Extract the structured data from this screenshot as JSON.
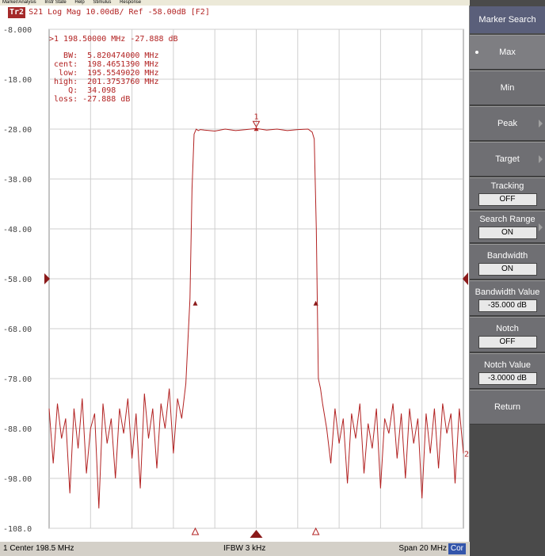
{
  "menubar": {
    "items": [
      "Marker/Analysis",
      "Instr State",
      "Help",
      "Stimulus",
      "Response"
    ]
  },
  "trace": {
    "badge": "Tr2",
    "header": "S21 Log Mag 10.00dB/ Ref -58.00dB [F2]",
    "color": "#b22222"
  },
  "marker_readout": {
    "line1": ">1  198.50000 MHz -27.888 dB",
    "bw": "   BW:  5.820474000 MHz",
    "cent": " cent:  198.4651390 MHz",
    "low": "  low:  195.5549020 MHz",
    "high": " high:  201.3753760 MHz",
    "q": "    Q:  34.098",
    "loss": " loss: -27.888 dB",
    "marker_label": "1"
  },
  "status": {
    "center": "1  Center 198.5 MHz",
    "ifbw": "IFBW 3 kHz",
    "span": "Span 20 MHz",
    "cor": "Cor"
  },
  "softkeys": {
    "title": "Marker Search",
    "max": "Max",
    "min": "Min",
    "peak": "Peak",
    "target": "Target",
    "tracking_label": "Tracking",
    "tracking_value": "OFF",
    "search_range_label": "Search Range",
    "search_range_value": "ON",
    "bandwidth_label": "Bandwidth",
    "bandwidth_value": "ON",
    "bandwidth_value_label": "Bandwidth Value",
    "bandwidth_value_value": "-35.000 dB",
    "notch_label": "Notch",
    "notch_value": "OFF",
    "notch_value_label": "Notch Value",
    "notch_value_value": "-3.0000 dB",
    "return": "Return"
  },
  "chart_data": {
    "type": "line",
    "title": "S21 Log Mag 10.00dB/ Ref -58.00dB [F2]",
    "x_unit": "MHz",
    "xlim": [
      188.5,
      208.5
    ],
    "ylim": [
      -108,
      -8
    ],
    "yticks": [
      -8,
      -18,
      -28,
      -38,
      -48,
      -58,
      -68,
      -78,
      -88,
      -98,
      -108
    ],
    "ytick_labels": [
      "-8.000",
      "-18.00",
      "-28.00",
      "-38.00",
      "-48.00",
      "-58.00",
      "-68.00",
      "-78.00",
      "-88.00",
      "-98.00",
      "-108.0"
    ],
    "reference_level": -58,
    "grid": true,
    "series": [
      {
        "name": "S21",
        "x": [
          188.5,
          188.7,
          188.9,
          189.1,
          189.3,
          189.5,
          189.7,
          189.9,
          190.1,
          190.3,
          190.5,
          190.7,
          190.9,
          191.1,
          191.3,
          191.5,
          191.7,
          191.9,
          192.1,
          192.3,
          192.5,
          192.7,
          192.9,
          193.1,
          193.3,
          193.5,
          193.7,
          193.9,
          194.1,
          194.3,
          194.5,
          194.7,
          194.9,
          195.1,
          195.3,
          195.4,
          195.5,
          195.6,
          195.7,
          195.8,
          196.0,
          196.5,
          197.0,
          197.5,
          198.0,
          198.5,
          199.0,
          199.5,
          200.0,
          200.5,
          201.0,
          201.2,
          201.3,
          201.4,
          201.5,
          201.6,
          201.7,
          201.9,
          202.1,
          202.3,
          202.5,
          202.7,
          202.9,
          203.1,
          203.3,
          203.5,
          203.7,
          203.9,
          204.1,
          204.3,
          204.5,
          204.7,
          204.9,
          205.1,
          205.3,
          205.5,
          205.7,
          205.9,
          206.1,
          206.3,
          206.5,
          206.7,
          206.9,
          207.1,
          207.3,
          207.5,
          207.7,
          207.9,
          208.1,
          208.3,
          208.5
        ],
        "y": [
          -84,
          -95,
          -83,
          -90,
          -86,
          -101,
          -84,
          -92,
          -82,
          -97,
          -88,
          -85,
          -104,
          -83,
          -91,
          -86,
          -98,
          -84,
          -89,
          -82,
          -94,
          -85,
          -100,
          -81,
          -90,
          -84,
          -96,
          -83,
          -88,
          -80,
          -93,
          -82,
          -86,
          -79,
          -62,
          -40,
          -29,
          -28,
          -28.3,
          -28.1,
          -28.2,
          -28.4,
          -28.0,
          -28.3,
          -28.1,
          -27.888,
          -28.2,
          -28.0,
          -28.3,
          -28.1,
          -28.0,
          -28.6,
          -30,
          -48,
          -78,
          -80,
          -83,
          -88,
          -95,
          -84,
          -91,
          -86,
          -99,
          -85,
          -90,
          -83,
          -97,
          -87,
          -92,
          -84,
          -100,
          -86,
          -89,
          -83,
          -94,
          -85,
          -98,
          -84,
          -91,
          -86,
          -102,
          -85,
          -93,
          -84,
          -96,
          -83,
          -89,
          -85,
          -99,
          -84,
          -93
        ]
      }
    ],
    "markers": [
      {
        "label": "1",
        "x": 198.5,
        "y": -27.888
      }
    ],
    "bandwidth_points": {
      "low": 195.5549,
      "high": 201.3754,
      "level": -62.888
    },
    "status_center": "Center 198.5 MHz",
    "status_ifbw": "IFBW 3 kHz",
    "status_span": "Span 20 MHz"
  }
}
